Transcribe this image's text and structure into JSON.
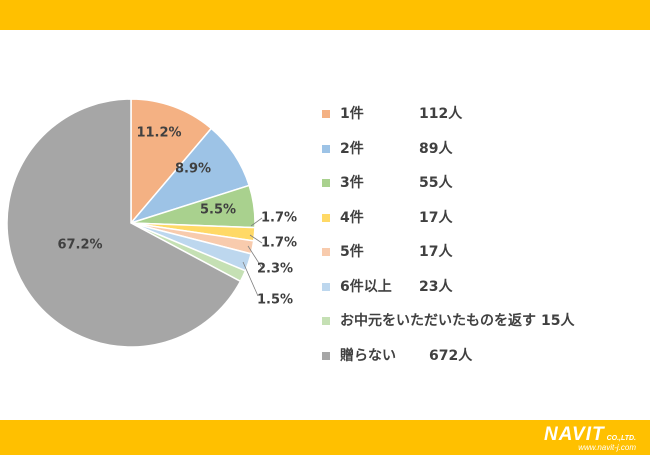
{
  "chart_data": {
    "type": "pie",
    "slices": [
      {
        "label": "1件",
        "value": 11.2,
        "value_label": "11.2%",
        "count": "112人",
        "color": "#F4B183"
      },
      {
        "label": "2件",
        "value": 8.9,
        "value_label": "8.9%",
        "count": "89人",
        "color": "#9DC3E6"
      },
      {
        "label": "3件",
        "value": 5.5,
        "value_label": "5.5%",
        "count": "55人",
        "color": "#A9D18E"
      },
      {
        "label": "4件",
        "value": 1.7,
        "value_label": "1.7%",
        "count": "17人",
        "color": "#FFD966"
      },
      {
        "label": "5件",
        "value": 1.7,
        "value_label": "1.7%",
        "count": "17人",
        "color": "#F8CBAD"
      },
      {
        "label": "6件以上",
        "value": 2.3,
        "value_label": "2.3%",
        "count": "23人",
        "color": "#BDD7EE"
      },
      {
        "label": "お中元をいただいたものを返す",
        "value": 1.5,
        "value_label": "1.5%",
        "count": "15人",
        "color": "#C5E0B4"
      },
      {
        "label": "贈らない",
        "value": 67.2,
        "value_label": "67.2%",
        "count": "672人",
        "color": "#A6A6A6"
      }
    ],
    "legend_position": "right"
  },
  "brand": {
    "logo": "NAVIT",
    "suffix": "CO.,LTD.",
    "url": "www.navit-j.com"
  },
  "colors": {
    "band": "#FFC000",
    "text": "#404040"
  }
}
